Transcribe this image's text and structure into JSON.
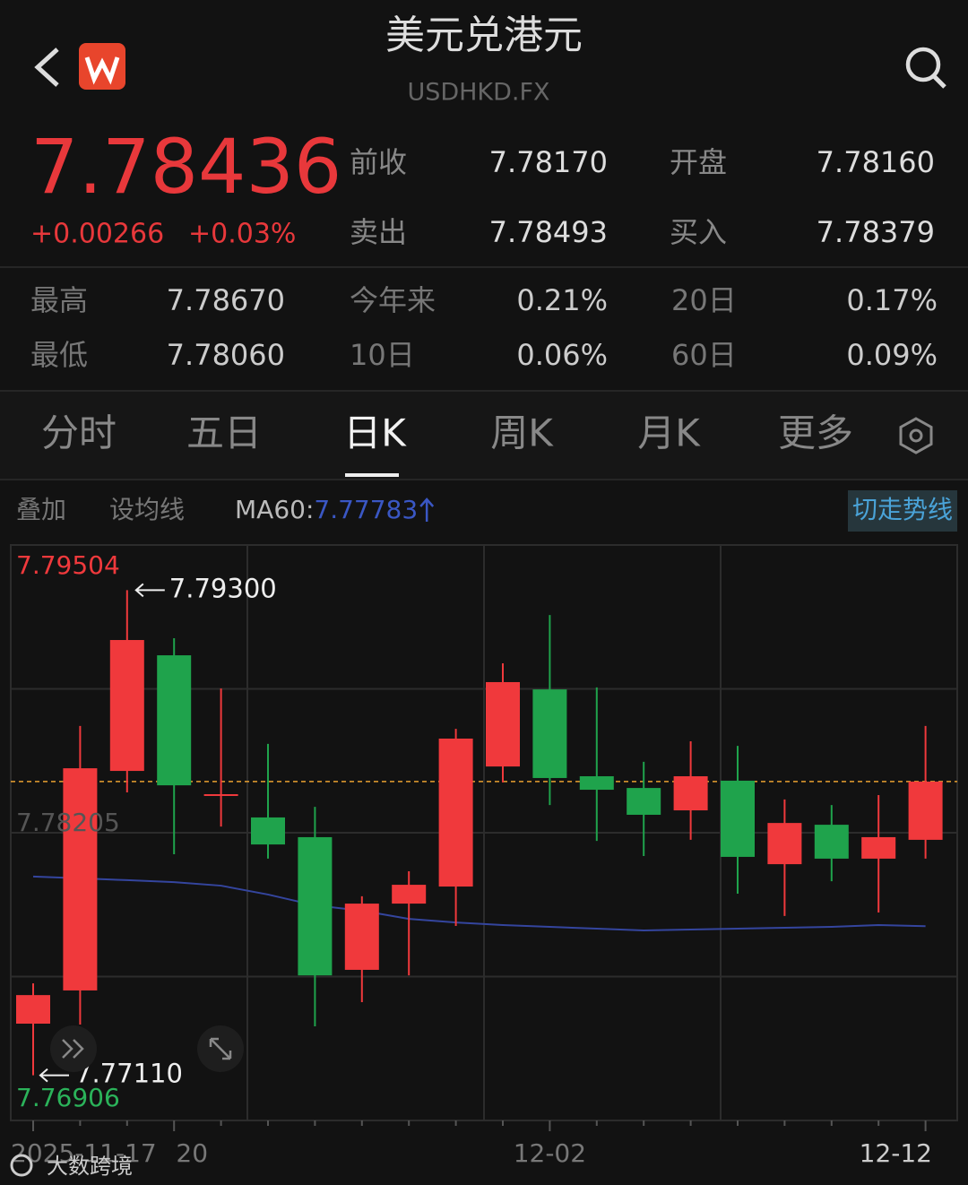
{
  "header": {
    "title": "美元兑港元",
    "subtitle": "USDHKD.FX"
  },
  "quote": {
    "price": "7.78436",
    "change": "+0.00266",
    "change_pct": "+0.03%"
  },
  "quote_table": [
    [
      "前收",
      "7.78170",
      "开盘",
      "7.78160"
    ],
    [
      "卖出",
      "7.78493",
      "买入",
      "7.78379"
    ]
  ],
  "stats_table": [
    [
      "最高",
      "7.78670",
      "今年来",
      "0.21%",
      "20日",
      "0.17%"
    ],
    [
      "最低",
      "7.78060",
      "10日",
      "0.06%",
      "60日",
      "0.09%"
    ]
  ],
  "tabs": [
    "分时",
    "五日",
    "日K",
    "周K",
    "月K",
    "更多"
  ],
  "selected_tab": 2,
  "toolbar": {
    "overlay": "叠加",
    "set_ma": "设均线",
    "toggle": "切走势线"
  },
  "watermark": "大数跨境",
  "chart_data": {
    "type": "candlestick",
    "categories": [
      "2025-11-17",
      null,
      null,
      "20",
      null,
      null,
      null,
      null,
      null,
      null,
      null,
      "12-02",
      null,
      null,
      null,
      null,
      null,
      null,
      null,
      "12-12"
    ],
    "open": [
      7.77343,
      7.77493,
      7.78484,
      7.79006,
      7.78367,
      7.78274,
      7.78185,
      7.77586,
      7.77885,
      7.77962,
      7.78504,
      7.78852,
      7.7846,
      7.78407,
      7.78306,
      7.7844,
      7.78063,
      7.78241,
      7.78088,
      7.78173
    ],
    "high": [
      7.77525,
      7.78687,
      7.793,
      7.79083,
      7.78856,
      7.78606,
      7.78322,
      7.77918,
      7.78031,
      7.78674,
      7.7897,
      7.79188,
      7.78861,
      7.78525,
      7.78618,
      7.78597,
      7.78355,
      7.7833,
      7.78375,
      7.78687
    ],
    "low": [
      7.7711,
      7.77339,
      7.78387,
      7.78108,
      7.78233,
      7.78088,
      7.77331,
      7.7744,
      7.77561,
      7.77784,
      7.78432,
      7.7833,
      7.78168,
      7.781,
      7.78173,
      7.7793,
      7.77829,
      7.77986,
      7.77845,
      7.78088
    ],
    "close": [
      7.77472,
      7.78496,
      7.79075,
      7.78419,
      7.78375,
      7.78152,
      7.77561,
      7.77885,
      7.7797,
      7.7863,
      7.78885,
      7.78452,
      7.78399,
      7.78286,
      7.7846,
      7.78096,
      7.78249,
      7.78088,
      7.78185,
      7.78436
    ],
    "up_color": "#f0393c",
    "down_color": "#1fa34c",
    "ma": {
      "name": "MA60:",
      "value_label": "7.77783",
      "color": "#34459e",
      "values": [
        7.78007,
        7.77999,
        7.77991,
        7.77982,
        7.77966,
        7.77926,
        7.77877,
        7.77853,
        7.77816,
        7.778,
        7.77788,
        7.7778,
        7.77772,
        7.77764,
        7.77768,
        7.77772,
        7.77776,
        7.7778,
        7.77788,
        7.77783
      ]
    },
    "current_price": 7.78436,
    "current_price_color": "#e8a030",
    "annotations": {
      "high_label": "7.79300",
      "low_label": "7.77110"
    },
    "ylim": [
      7.76906,
      7.79504
    ],
    "yticks": [
      7.76906,
      7.78205,
      7.79504
    ],
    "ytick_colors": [
      "#2bb35a",
      "#555555",
      "#f0393c"
    ]
  }
}
